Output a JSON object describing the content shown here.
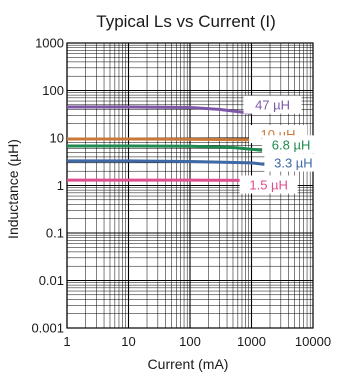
{
  "chart_data": {
    "type": "line",
    "title": "Typical Ls vs Current (I)",
    "xlabel": "Current (mA)",
    "ylabel": "Inductance (µH)",
    "x_scale": "log",
    "y_scale": "log",
    "xlim": [
      1,
      10000
    ],
    "ylim": [
      0.001,
      1000
    ],
    "x_ticks": [
      "1",
      "10",
      "100",
      "1000",
      "10000"
    ],
    "y_ticks": [
      "0.001",
      "0.01",
      "0.1",
      "1",
      "10",
      "100",
      "1000"
    ],
    "grid": true,
    "series": [
      {
        "name": "47 µH",
        "color": "#7e58a6",
        "x": [
          1,
          10,
          100,
          300,
          700,
          1000
        ],
        "y": [
          45,
          45,
          44,
          40,
          35,
          33
        ]
      },
      {
        "name": "10 µH",
        "color": "#c9783a",
        "x": [
          1,
          10,
          100,
          1000,
          1500
        ],
        "y": [
          9.5,
          9.5,
          9.4,
          9.2,
          9.0
        ]
      },
      {
        "name": "6.8 µH",
        "color": "#1e8a4f",
        "x": [
          1,
          10,
          100,
          500,
          1000,
          2000
        ],
        "y": [
          6.8,
          6.8,
          6.7,
          6.3,
          5.8,
          5.3
        ]
      },
      {
        "name": "3.3 µH",
        "color": "#3f68a6",
        "x": [
          1,
          10,
          100,
          1000,
          2000,
          3000
        ],
        "y": [
          3.3,
          3.3,
          3.2,
          3.0,
          2.7,
          2.4
        ]
      },
      {
        "name": "1.5 µH",
        "color": "#dd4e8e",
        "x": [
          1,
          10,
          100,
          1000,
          4000
        ],
        "y": [
          1.3,
          1.3,
          1.3,
          1.28,
          1.25
        ]
      }
    ]
  }
}
